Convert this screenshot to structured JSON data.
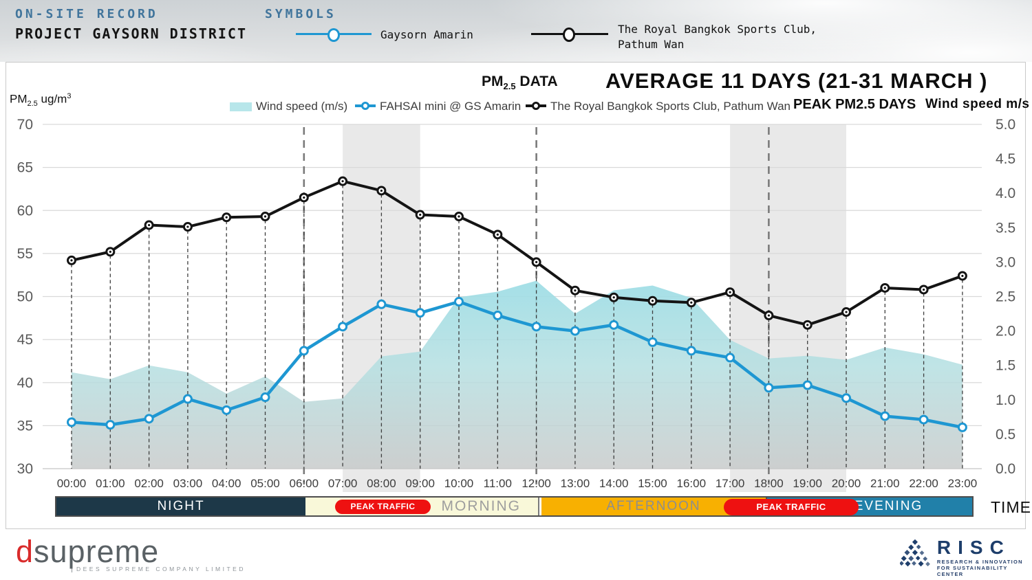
{
  "header": {
    "record_label": "ON-SITE RECORD",
    "project_title": "PROJECT GAYSORN DISTRICT",
    "symbols_label": "SYMBOLS",
    "symbols": [
      {
        "label": "Gaysorn Amarin",
        "color": "#1e97d2"
      },
      {
        "label_line1": "The Royal Bangkok Sports Club,",
        "label_line2": "Pathum Wan",
        "color": "#111111"
      }
    ]
  },
  "titles": {
    "pm": "PM",
    "pm_sub": "2.5",
    "data_word": "DATA",
    "main": "AVERAGE 11 DAYS (21-31 MARCH )",
    "peak_label": "PEAK PM2.5 DAYS",
    "wind_axis_title": "Wind speed m/s",
    "left_axis_pm": "PM",
    "left_axis_sub": "2.5",
    "left_axis_unit": "ug/m",
    "left_axis_sup": "3"
  },
  "legend": {
    "wind": "Wind speed (m/s)",
    "fahsai": "FAHSAI mini @ GS Amarin",
    "rbsc": "The Royal Bangkok Sports Club, Pathum Wan"
  },
  "timeline": {
    "segments": [
      {
        "label": "NIGHT",
        "color": "#1d3848"
      },
      {
        "label": "MORNING",
        "color": "#f9f8d9"
      },
      {
        "label": "AFTERNOON",
        "color": "#f8b001"
      },
      {
        "label": "EVENING",
        "color": "#2180a9"
      }
    ],
    "peak_traffic_1": "PEAK TRAFFIC",
    "peak_traffic_2": "PEAK TRAFFIC",
    "pill_color": "#ee1111",
    "time_label": "TIME"
  },
  "footer": {
    "dsupreme": {
      "d": "d",
      "rest": "supreme",
      "caption": "DEES SUPREME COMPANY LIMITED",
      "d_color": "#d92b2b"
    },
    "risc": {
      "name": "RISC",
      "tagline_line1": "RESEARCH & INNOVATION",
      "tagline_line2": "FOR SUSTAINABILITY CENTER",
      "color": "#1e3e6b"
    }
  },
  "chart_data": {
    "type": "line",
    "title": "PM2.5 DATA — AVERAGE 11 DAYS (21-31 MARCH)",
    "xlabel": "TIME",
    "ylabel_left": "PM2.5 ug/m3",
    "ylabel_right": "Wind speed m/s",
    "grid": true,
    "legend_position": "top",
    "x": [
      "00:00",
      "01:00",
      "02:00",
      "03:00",
      "04:00",
      "05:00",
      "06:00",
      "07:00",
      "08:00",
      "09:00",
      "10:00",
      "11:00",
      "12:00",
      "13:00",
      "14:00",
      "15:00",
      "16:00",
      "17:00",
      "18:00",
      "19:00",
      "20:00",
      "21:00",
      "22:00",
      "23:00"
    ],
    "series": [
      {
        "name": "Wind speed (m/s)",
        "type": "area",
        "axis": "right",
        "color": "#b7e6ea",
        "values": [
          1.4,
          1.3,
          1.5,
          1.4,
          1.09,
          1.34,
          0.97,
          1.02,
          1.63,
          1.7,
          2.49,
          2.57,
          2.73,
          2.25,
          2.59,
          2.66,
          2.48,
          1.87,
          1.6,
          1.64,
          1.58,
          1.76,
          1.66,
          1.51
        ]
      },
      {
        "name": "FAHSAI mini @ GS Amarin",
        "type": "line",
        "axis": "left",
        "color": "#1e97d2",
        "values": [
          35.4,
          35.1,
          35.8,
          38.1,
          36.8,
          38.3,
          43.7,
          46.5,
          49.1,
          48.1,
          49.4,
          47.8,
          46.5,
          46.0,
          46.7,
          44.7,
          43.7,
          42.9,
          39.4,
          39.7,
          38.2,
          36.1,
          35.7,
          34.8
        ]
      },
      {
        "name": "The Royal Bangkok Sports Club, Pathum Wan",
        "type": "line",
        "axis": "left",
        "color": "#141414",
        "values": [
          54.2,
          55.2,
          58.3,
          58.1,
          59.2,
          59.3,
          61.5,
          63.4,
          62.3,
          59.5,
          59.3,
          57.2,
          54.0,
          50.7,
          49.9,
          49.5,
          49.3,
          50.5,
          47.8,
          46.7,
          48.2,
          51.0,
          50.8,
          52.4
        ]
      }
    ],
    "left_axis": {
      "ticks": [
        70,
        65,
        60,
        55,
        50,
        45,
        40,
        35,
        30
      ],
      "range": [
        30,
        70
      ]
    },
    "right_axis": {
      "ticks": [
        "5.0",
        "4.5",
        "4.0",
        "3.5",
        "3.0",
        "2.5",
        "2.0",
        "1.5",
        "1.0",
        "0.5",
        "0.0"
      ],
      "range": [
        0,
        5
      ]
    },
    "peak_bands_hours": [
      [
        7,
        9
      ],
      [
        17,
        20
      ]
    ],
    "boundary_hours": [
      6,
      12,
      18
    ]
  }
}
